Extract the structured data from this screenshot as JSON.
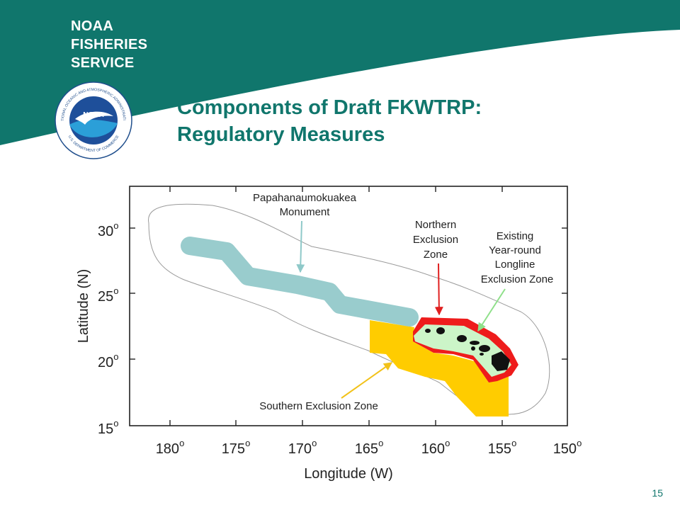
{
  "header": {
    "brand_line1": "NOAA",
    "brand_line2": "FISHERIES",
    "brand_line3": "SERVICE",
    "logo": {
      "center_text": "NOAA",
      "ring_text_top": "NATIONAL OCEANIC AND ATMOSPHERIC ADMINISTRATION",
      "ring_text_bottom": "U.S. DEPARTMENT OF COMMERCE"
    },
    "title_line1": "Components of Draft FKWTRP:",
    "title_line2": "Regulatory Measures"
  },
  "map": {
    "xlabel": "Longitude (W)",
    "ylabel": "Latitude (N)",
    "x_ticks": [
      {
        "value": 180,
        "label": "180",
        "sup": "o"
      },
      {
        "value": 175,
        "label": "175",
        "sup": "o"
      },
      {
        "value": 170,
        "label": "170",
        "sup": "o"
      },
      {
        "value": 165,
        "label": "165",
        "sup": "o"
      },
      {
        "value": 160,
        "label": "160",
        "sup": "o"
      },
      {
        "value": 155,
        "label": "155",
        "sup": "o"
      },
      {
        "value": 150,
        "label": "150",
        "sup": "o"
      }
    ],
    "y_ticks": [
      {
        "value": 15,
        "label": "15",
        "sup": "o"
      },
      {
        "value": 20,
        "label": "20",
        "sup": "o"
      },
      {
        "value": 25,
        "label": "25",
        "sup": "o"
      },
      {
        "value": 30,
        "label": "30",
        "sup": "o"
      }
    ],
    "labels": {
      "monument_line1": "Papahanaumokuakea",
      "monument_line2": "Monument",
      "northern_line1": "Northern",
      "northern_line2": "Exclusion",
      "northern_line3": "Zone",
      "existing_line1": "Existing",
      "existing_line2": "Year-round",
      "existing_line3": "Longline",
      "existing_line4": "Exclusion Zone",
      "southern": "Southern Exclusion Zone"
    },
    "colors": {
      "monument": "#99cccd",
      "northern_zone": "#ee1c1c",
      "existing_zone": "#ccf5c8",
      "southern_zone": "#ffcc00",
      "islands": "#111111",
      "monument_arrow": "#8fc9c9",
      "northern_arrow": "#e02020",
      "existing_arrow": "#8fe08a",
      "southern_arrow": "#f2c21a"
    }
  },
  "footer": {
    "page_number": "15"
  }
}
